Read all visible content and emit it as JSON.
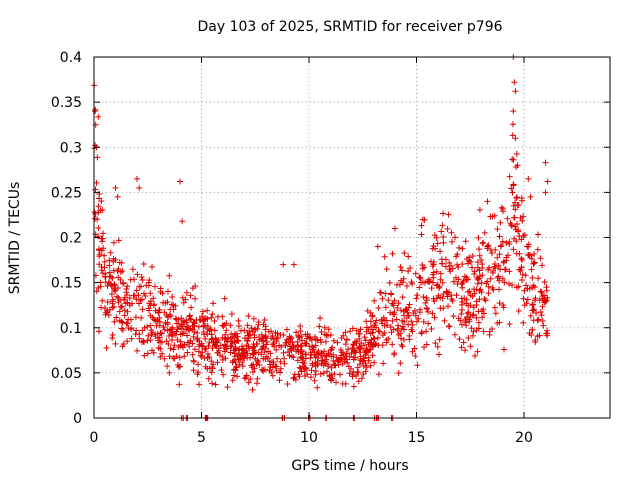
{
  "chart_data": {
    "type": "scatter",
    "title": "Day 103 of 2025, SRMTID for receiver p796",
    "xlabel": "GPS time / hours",
    "ylabel": "SRMTID / TECUs",
    "xlim": [
      0,
      24
    ],
    "ylim": [
      0,
      0.4
    ],
    "x_ticks": [
      0,
      5,
      10,
      15,
      20
    ],
    "x_tick_labels": [
      "0",
      "5",
      "10",
      "15",
      "20"
    ],
    "y_ticks": [
      0,
      0.05,
      0.1,
      0.15,
      0.2,
      0.25,
      0.3,
      0.35,
      0.4
    ],
    "y_tick_labels": [
      "0",
      "0.05",
      "0.1",
      "0.15",
      "0.2",
      "0.25",
      "0.3",
      "0.35",
      "0.4"
    ],
    "grid": true,
    "marker": "+",
    "marker_color": "#e00000",
    "axis_color": "#000000",
    "grid_color": "#a0a0a0",
    "series": [
      {
        "name": "SRMTID",
        "profile_x": [
          0,
          0.1,
          0.3,
          0.6,
          1.0,
          1.5,
          2.0,
          2.5,
          3.0,
          3.5,
          4.0,
          4.5,
          5.0,
          6.0,
          7.0,
          8.0,
          9.0,
          10.0,
          11.0,
          12.0,
          12.5,
          13.0,
          13.5,
          14.0,
          14.5,
          15.0,
          15.5,
          16.0,
          16.5,
          17.0,
          17.5,
          18.0,
          18.5,
          19.0,
          19.3,
          19.5,
          19.7,
          20.0,
          20.5,
          21.0
        ],
        "profile_y": [
          0.31,
          0.26,
          0.18,
          0.12,
          0.15,
          0.11,
          0.13,
          0.12,
          0.1,
          0.1,
          0.09,
          0.1,
          0.09,
          0.08,
          0.075,
          0.08,
          0.075,
          0.065,
          0.07,
          0.07,
          0.075,
          0.09,
          0.11,
          0.12,
          0.11,
          0.12,
          0.14,
          0.15,
          0.16,
          0.14,
          0.13,
          0.15,
          0.16,
          0.17,
          0.18,
          0.25,
          0.2,
          0.17,
          0.14,
          0.12
        ],
        "spikes": [
          {
            "x": 0.05,
            "y": 0.34
          },
          {
            "x": 0.08,
            "y": 0.325
          },
          {
            "x": 0.12,
            "y": 0.3
          },
          {
            "x": 0.3,
            "y": 0.23
          },
          {
            "x": 1.0,
            "y": 0.255
          },
          {
            "x": 1.1,
            "y": 0.245
          },
          {
            "x": 2.0,
            "y": 0.265
          },
          {
            "x": 2.1,
            "y": 0.255
          },
          {
            "x": 4.0,
            "y": 0.262
          },
          {
            "x": 4.1,
            "y": 0.218
          },
          {
            "x": 8.8,
            "y": 0.17
          },
          {
            "x": 9.3,
            "y": 0.17
          },
          {
            "x": 13.2,
            "y": 0.19
          },
          {
            "x": 14.0,
            "y": 0.21
          },
          {
            "x": 15.3,
            "y": 0.22
          },
          {
            "x": 18.3,
            "y": 0.24
          },
          {
            "x": 19.5,
            "y": 0.4
          },
          {
            "x": 19.55,
            "y": 0.372
          },
          {
            "x": 19.6,
            "y": 0.362
          },
          {
            "x": 19.5,
            "y": 0.34
          },
          {
            "x": 19.6,
            "y": 0.31
          },
          {
            "x": 19.7,
            "y": 0.28
          },
          {
            "x": 20.2,
            "y": 0.265
          },
          {
            "x": 20.3,
            "y": 0.245
          },
          {
            "x": 21.0,
            "y": 0.283
          },
          {
            "x": 21.1,
            "y": 0.262
          },
          {
            "x": 21.0,
            "y": 0.25
          }
        ],
        "zero_points_x": [
          4.1,
          4.3,
          5.2,
          5.3,
          8.8,
          10.0,
          10.8,
          12.1,
          13.1,
          13.2,
          13.9
        ]
      }
    ]
  }
}
